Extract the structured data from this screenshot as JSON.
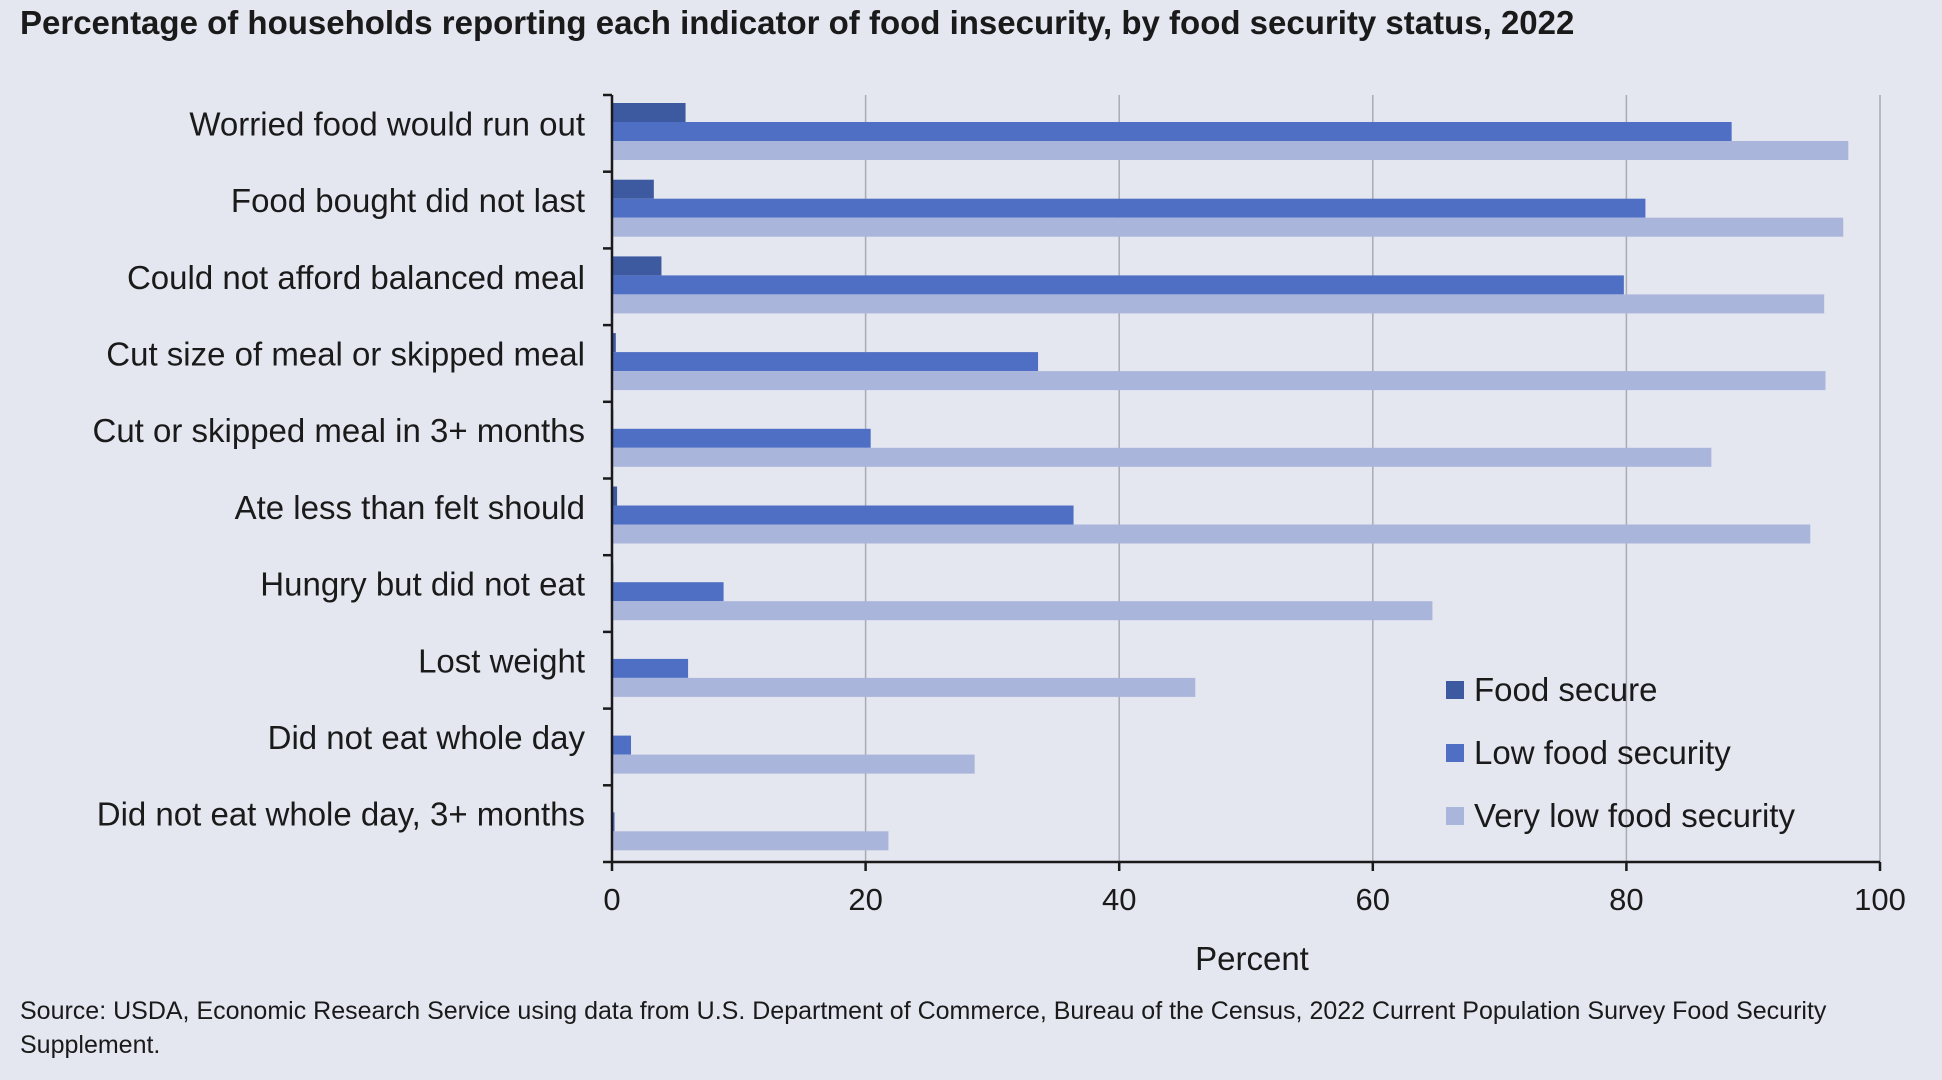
{
  "chart_data": {
    "type": "bar",
    "orientation": "horizontal",
    "title": "Percentage of households reporting each indicator of food insecurity, by food security status, 2022",
    "categories": [
      "Worried food would run out",
      "Food bought did not last",
      "Could not afford balanced meal",
      "Cut size of meal or skipped meal",
      "Cut or skipped meal in 3+ months",
      "Ate less than felt should",
      "Hungry but did not eat",
      "Lost weight",
      "Did not eat whole day",
      "Did not eat whole day, 3+ months"
    ],
    "series": [
      {
        "name": "Food secure",
        "color": "#3d5aa0",
        "values": [
          5.8,
          3.3,
          3.9,
          0.3,
          0.1,
          0.4,
          0.1,
          0.1,
          0.0,
          0.0
        ]
      },
      {
        "name": "Low food security",
        "color": "#4f6fc4",
        "values": [
          88.3,
          81.5,
          79.8,
          33.6,
          20.4,
          36.4,
          8.8,
          6.0,
          1.5,
          0.2
        ]
      },
      {
        "name": "Very low food security",
        "color": "#aab5db",
        "values": [
          97.5,
          97.1,
          95.6,
          95.7,
          86.7,
          94.5,
          64.7,
          46.0,
          28.6,
          21.8
        ]
      }
    ],
    "xlabel": "Percent",
    "ylabel": "",
    "xlim": [
      0,
      100
    ],
    "xticks": [
      0,
      20,
      40,
      60,
      80,
      100
    ],
    "grid": true,
    "legend_position": "bottom-right"
  },
  "source": "Source: USDA, Economic Research Service using data from U.S. Department of Commerce, Bureau of the Census, 2022 Current Population Survey Food Security Supplement."
}
